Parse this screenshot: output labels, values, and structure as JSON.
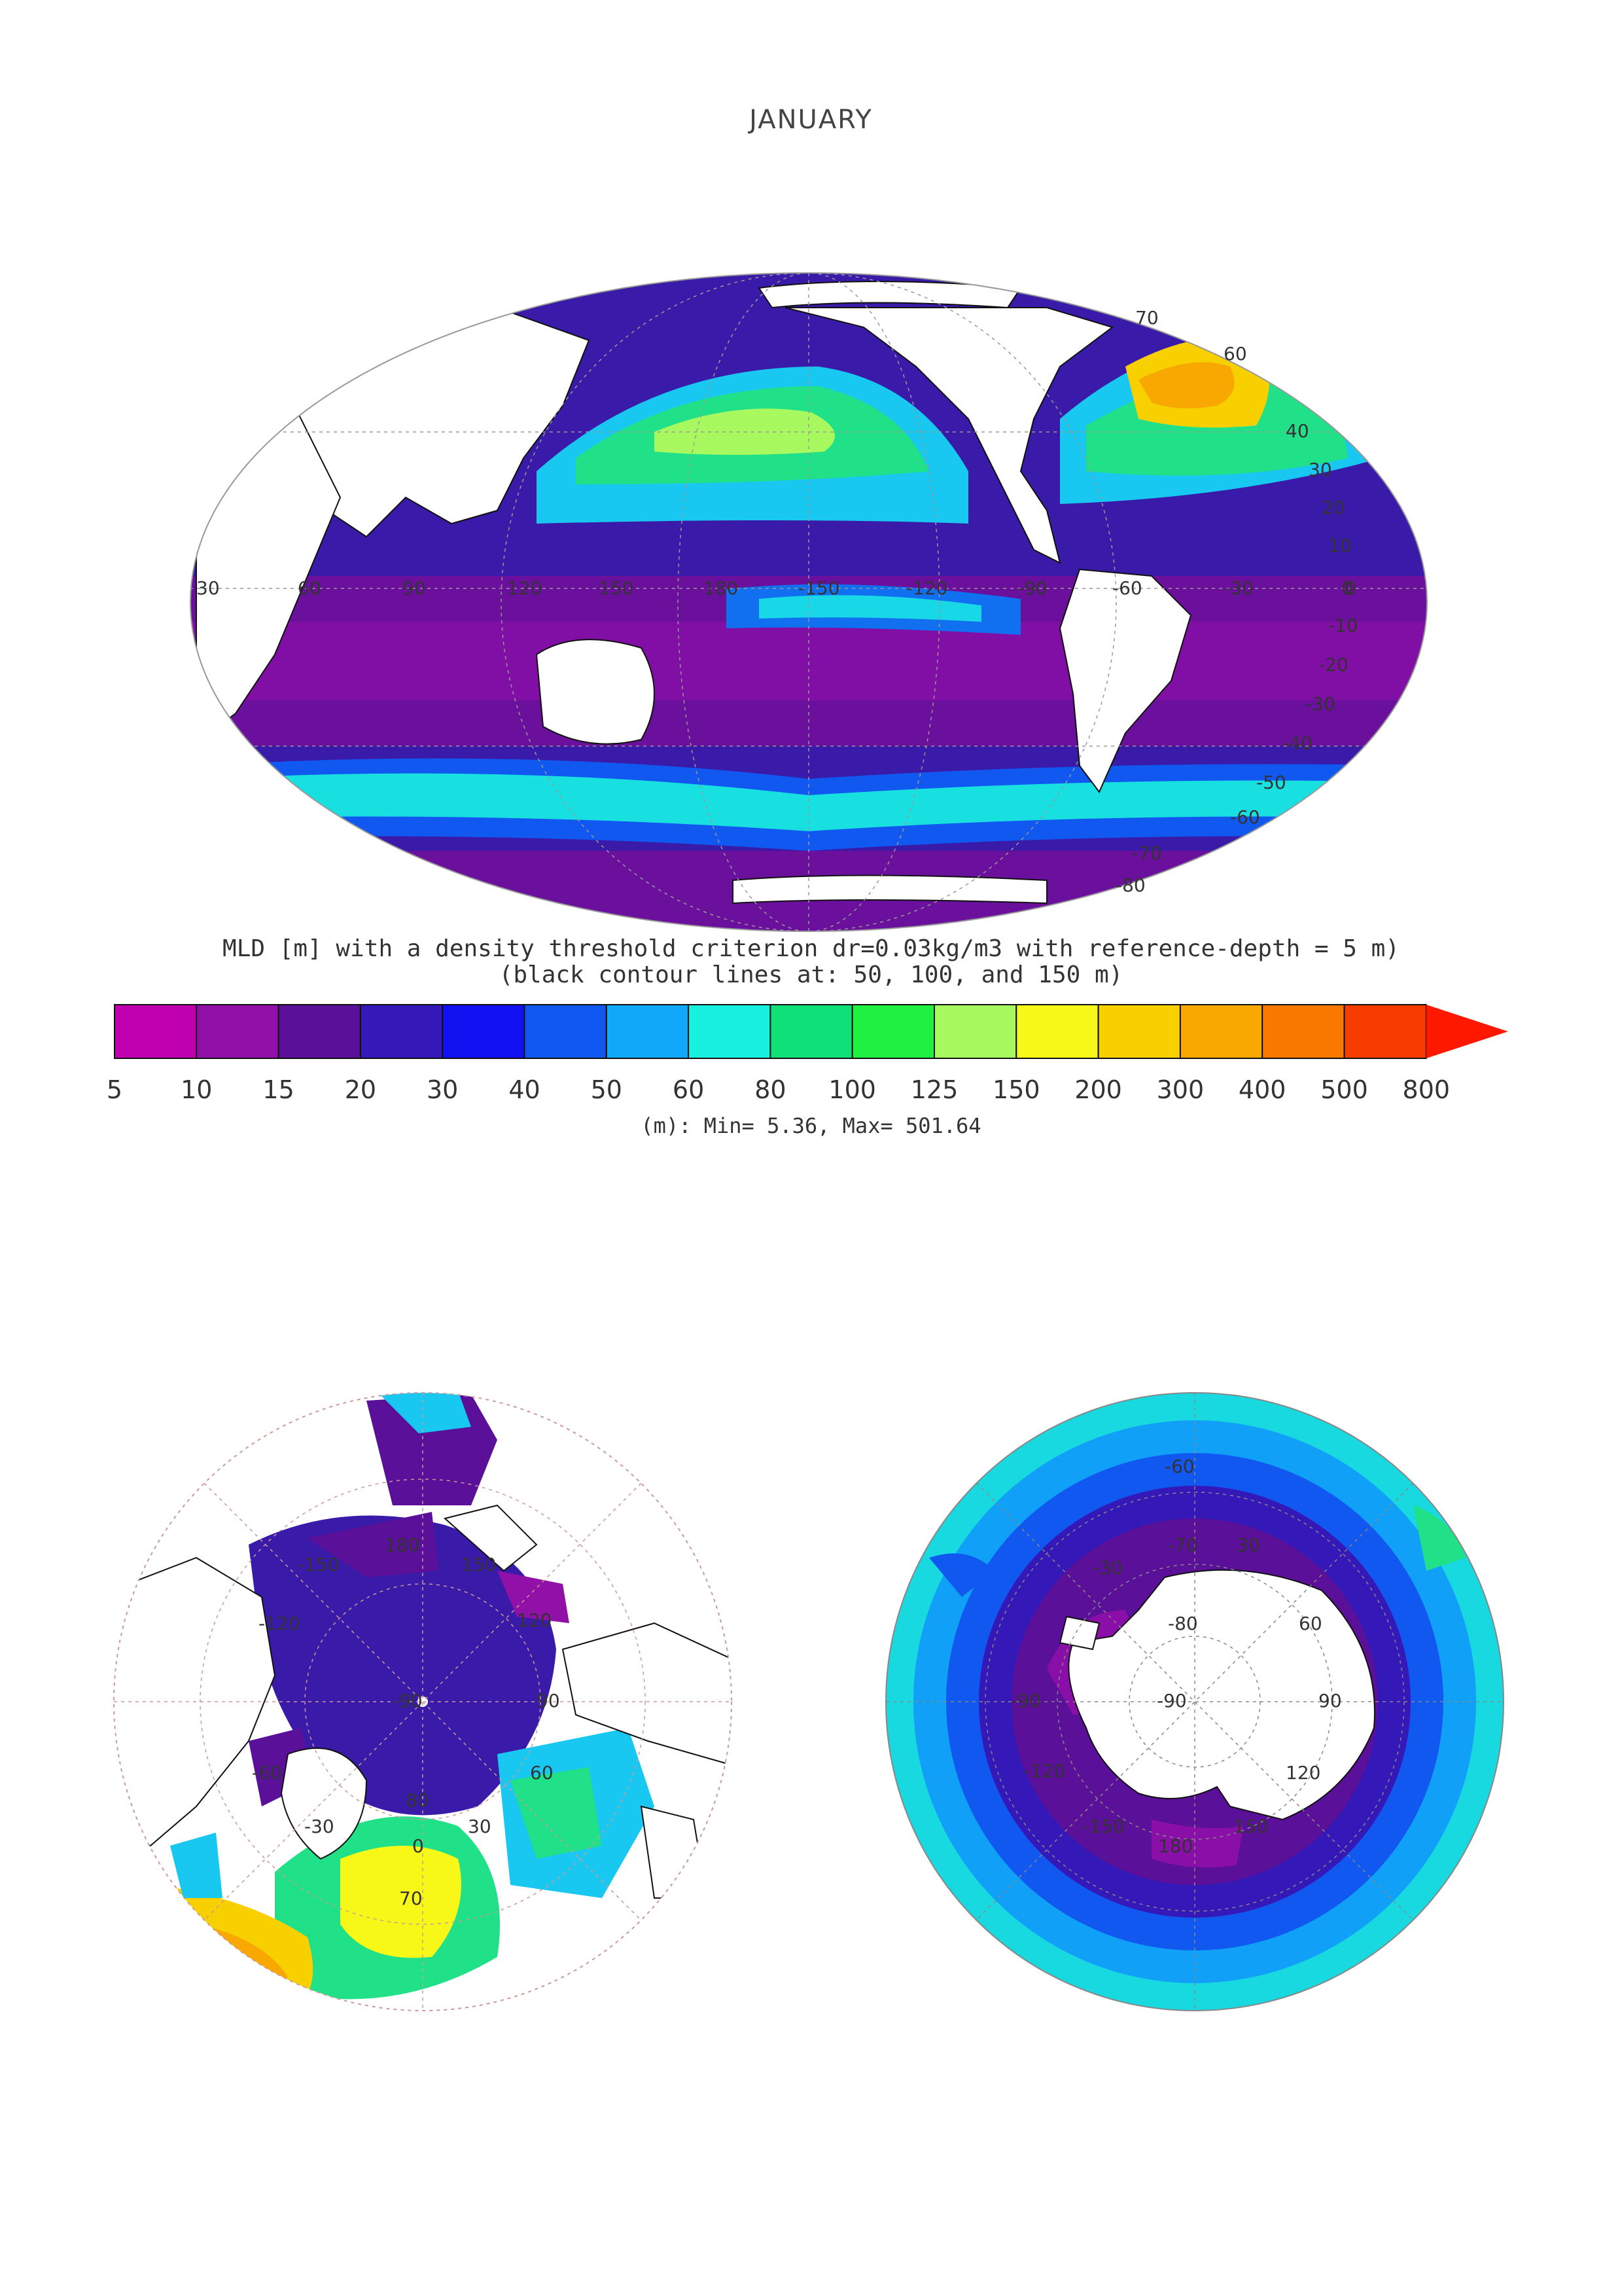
{
  "page": {
    "title": "JANUARY"
  },
  "caption": {
    "line1": "MLD [m] with a density threshold criterion dr=0.03kg/m3 with reference-depth = 5 m)",
    "line2": "(black contour lines at: 50, 100, and 150 m)",
    "stats": "(m): Min= 5.36, Max= 501.64"
  },
  "colorbar": {
    "ticks": [
      "5",
      "10",
      "15",
      "20",
      "30",
      "40",
      "50",
      "60",
      "80",
      "100",
      "125",
      "150",
      "200",
      "300",
      "400",
      "500",
      "800"
    ],
    "colors": [
      "#c000b0",
      "#9010a8",
      "#5a1098",
      "#3418b8",
      "#1010f0",
      "#1058f0",
      "#10a8f8",
      "#18f0e0",
      "#10e078",
      "#20f040",
      "#a8f860",
      "#f8f818",
      "#f8d000",
      "#f8a800",
      "#f87800",
      "#f83c00"
    ],
    "overflow_color": "#ff1800"
  },
  "world_map": {
    "lon_labels": [
      "30",
      "60",
      "90",
      "120",
      "150",
      "180",
      "-150",
      "-120",
      "-90",
      "-60",
      "-30",
      "0"
    ],
    "lat_labels": [
      "70",
      "60",
      "40",
      "30",
      "20",
      "10",
      "0",
      "-10",
      "-20",
      "-30",
      "-40",
      "-50",
      "-60",
      "-70",
      "-80"
    ]
  },
  "north_polar": {
    "labels": [
      "180",
      "-150",
      "150",
      "120",
      "-120",
      "90",
      "-90",
      "60",
      "-60",
      "30",
      "-30",
      "0",
      "70",
      "80"
    ]
  },
  "south_polar": {
    "labels": [
      "-60",
      "-70",
      "-80",
      "-90",
      "-30",
      "60",
      "90",
      "120",
      "150",
      "180",
      "-150",
      "-120",
      "-90",
      "30"
    ]
  }
}
